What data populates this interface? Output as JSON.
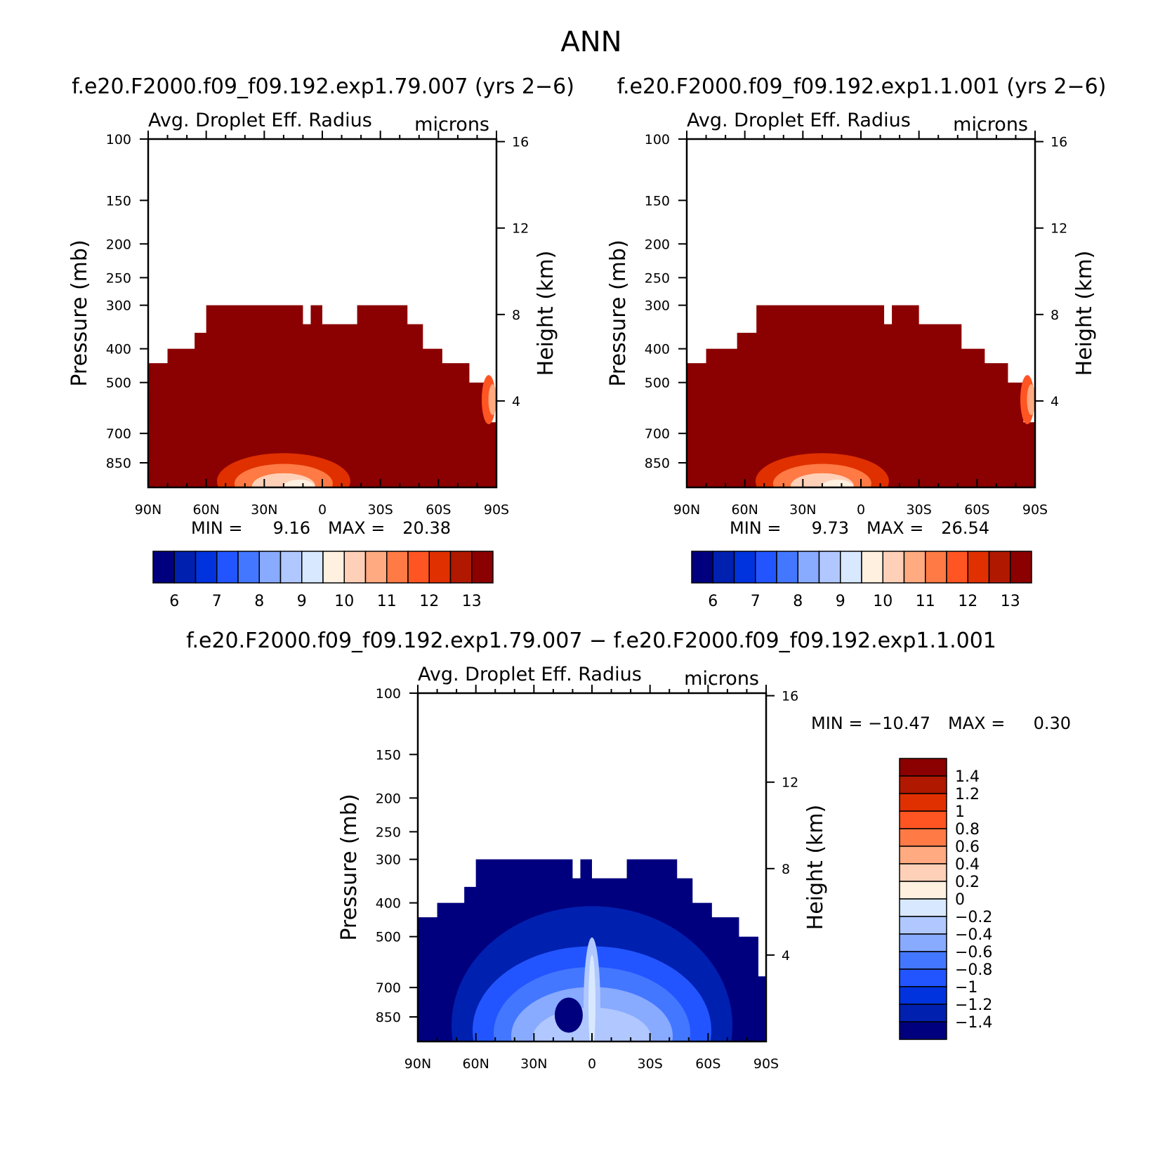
{
  "figure_title": "ANN",
  "chart_data": [
    {
      "type": "heatmap",
      "case_label": "f.e20.F2000.f09_f09.192.exp1.79.007 (yrs 2−6)",
      "title": "Avg. Droplet Eff. Radius",
      "units": "microns",
      "ylabel": "Pressure (mb)",
      "y2label": "Height (km)",
      "x_ticks": [
        "90N",
        "60N",
        "30N",
        "0",
        "30S",
        "60S",
        "90S"
      ],
      "y_ticks": [
        "100",
        "150",
        "200",
        "250",
        "300",
        "400",
        "500",
        "700",
        "850"
      ],
      "y_tick_values": [
        100,
        150,
        200,
        250,
        300,
        400,
        500,
        700,
        850
      ],
      "y2_ticks": [
        "16",
        "12",
        "8",
        "4"
      ],
      "ylim": [
        100,
        1000
      ],
      "min_label": "MIN =",
      "min_value": "9.16",
      "max_label": "MAX =",
      "max_value": "20.38",
      "colorbar_labels": [
        "6",
        "7",
        "8",
        "9",
        "10",
        "11",
        "12",
        "13"
      ],
      "colorbar_colors": [
        "#00007f",
        "#0020b0",
        "#0033dd",
        "#2255ff",
        "#4477ff",
        "#88aaff",
        "#b0c8ff",
        "#d8e8ff",
        "#fff0e0",
        "#ffd0b8",
        "#ffaa80",
        "#ff7a44",
        "#ff5522",
        "#e03000",
        "#b01800",
        "#8b0000"
      ],
      "cloud_top_profile": [
        [
          -90,
          440
        ],
        [
          -80,
          400
        ],
        [
          -66,
          360
        ],
        [
          -60,
          300
        ],
        [
          -12,
          300
        ],
        [
          -10,
          340
        ],
        [
          -6,
          300
        ],
        [
          0,
          340
        ],
        [
          18,
          340
        ],
        [
          18,
          300
        ],
        [
          44,
          300
        ],
        [
          44,
          340
        ],
        [
          52,
          340
        ],
        [
          52,
          400
        ],
        [
          62,
          400
        ],
        [
          62,
          440
        ],
        [
          76,
          440
        ],
        [
          76,
          500
        ],
        [
          86,
          500
        ],
        [
          86,
          650
        ],
        [
          90,
          650
        ]
      ],
      "dominant_color": "#8b0000"
    },
    {
      "type": "heatmap",
      "case_label": "f.e20.F2000.f09_f09.192.exp1.1.001 (yrs 2−6)",
      "title": "Avg. Droplet Eff. Radius",
      "units": "microns",
      "ylabel": "Pressure (mb)",
      "y2label": "Height (km)",
      "x_ticks": [
        "90N",
        "60N",
        "30N",
        "0",
        "30S",
        "60S",
        "90S"
      ],
      "y_ticks": [
        "100",
        "150",
        "200",
        "250",
        "300",
        "400",
        "500",
        "700",
        "850"
      ],
      "y_tick_values": [
        100,
        150,
        200,
        250,
        300,
        400,
        500,
        700,
        850
      ],
      "y2_ticks": [
        "16",
        "12",
        "8",
        "4"
      ],
      "ylim": [
        100,
        1000
      ],
      "min_label": "MIN =",
      "min_value": "9.73",
      "max_label": "MAX =",
      "max_value": "26.54",
      "colorbar_labels": [
        "6",
        "7",
        "8",
        "9",
        "10",
        "11",
        "12",
        "13"
      ],
      "colorbar_colors": [
        "#00007f",
        "#0020b0",
        "#0033dd",
        "#2255ff",
        "#4477ff",
        "#88aaff",
        "#b0c8ff",
        "#d8e8ff",
        "#fff0e0",
        "#ffd0b8",
        "#ffaa80",
        "#ff7a44",
        "#ff5522",
        "#e03000",
        "#b01800",
        "#8b0000"
      ],
      "cloud_top_profile": [
        [
          -90,
          440
        ],
        [
          -80,
          400
        ],
        [
          -64,
          360
        ],
        [
          -54,
          300
        ],
        [
          12,
          300
        ],
        [
          12,
          340
        ],
        [
          16,
          300
        ],
        [
          30,
          300
        ],
        [
          30,
          340
        ],
        [
          52,
          340
        ],
        [
          52,
          400
        ],
        [
          64,
          400
        ],
        [
          64,
          440
        ],
        [
          76,
          440
        ],
        [
          76,
          500
        ],
        [
          84,
          500
        ],
        [
          84,
          650
        ],
        [
          90,
          650
        ]
      ],
      "dominant_color": "#8b0000"
    },
    {
      "type": "heatmap",
      "case_label": "f.e20.F2000.f09_f09.192.exp1.79.007 − f.e20.F2000.f09_f09.192.exp1.1.001",
      "title": "Avg. Droplet Eff. Radius",
      "units": "microns",
      "ylabel": "Pressure (mb)",
      "y2label": "Height (km)",
      "x_ticks": [
        "90N",
        "60N",
        "30N",
        "0",
        "30S",
        "60S",
        "90S"
      ],
      "y_ticks": [
        "100",
        "150",
        "200",
        "250",
        "300",
        "400",
        "500",
        "700",
        "850"
      ],
      "y_tick_values": [
        100,
        150,
        200,
        250,
        300,
        400,
        500,
        700,
        850
      ],
      "y2_ticks": [
        "16",
        "12",
        "8",
        "4"
      ],
      "ylim": [
        100,
        1000
      ],
      "min_label": "MIN =",
      "min_value": "−10.47",
      "max_label": "MAX =",
      "max_value": "0.30",
      "colorbar_labels": [
        "1.4",
        "1.2",
        "1",
        "0.8",
        "0.6",
        "0.4",
        "0.2",
        "0",
        "−0.2",
        "−0.4",
        "−0.6",
        "−0.8",
        "−1",
        "−1.2",
        "−1.4"
      ],
      "colorbar_colors": [
        "#8b0000",
        "#b01800",
        "#e03000",
        "#ff5522",
        "#ff7a44",
        "#ffaa80",
        "#ffd0b8",
        "#fff0e0",
        "#d8e8ff",
        "#b0c8ff",
        "#88aaff",
        "#4477ff",
        "#2255ff",
        "#0033dd",
        "#0020b0",
        "#00007f"
      ],
      "cloud_top_profile": [
        [
          -90,
          440
        ],
        [
          -80,
          400
        ],
        [
          -66,
          360
        ],
        [
          -60,
          300
        ],
        [
          -10,
          300
        ],
        [
          -10,
          340
        ],
        [
          -6,
          300
        ],
        [
          0,
          340
        ],
        [
          18,
          340
        ],
        [
          18,
          300
        ],
        [
          44,
          300
        ],
        [
          44,
          340
        ],
        [
          52,
          340
        ],
        [
          52,
          400
        ],
        [
          62,
          400
        ],
        [
          62,
          440
        ],
        [
          76,
          440
        ],
        [
          76,
          500
        ],
        [
          86,
          500
        ],
        [
          86,
          650
        ],
        [
          90,
          650
        ]
      ],
      "dominant_color": "#00007f"
    }
  ]
}
